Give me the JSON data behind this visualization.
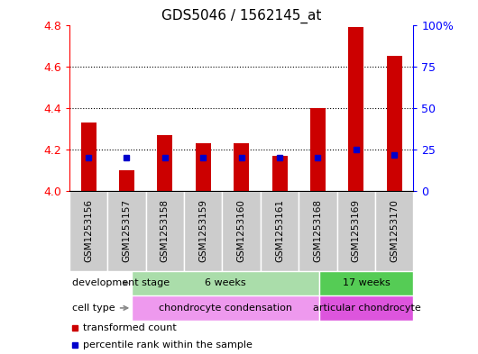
{
  "title": "GDS5046 / 1562145_at",
  "samples": [
    "GSM1253156",
    "GSM1253157",
    "GSM1253158",
    "GSM1253159",
    "GSM1253160",
    "GSM1253161",
    "GSM1253168",
    "GSM1253169",
    "GSM1253170"
  ],
  "transformed_counts": [
    4.33,
    4.1,
    4.27,
    4.23,
    4.23,
    4.17,
    4.4,
    4.79,
    4.65
  ],
  "percentile_ranks": [
    20,
    20,
    20,
    20,
    20,
    20,
    20,
    25,
    22
  ],
  "ylim": [
    4.0,
    4.8
  ],
  "yticks_left": [
    4.0,
    4.2,
    4.4,
    4.6,
    4.8
  ],
  "right_yticks": [
    0,
    25,
    50,
    75,
    100
  ],
  "bar_color": "#cc0000",
  "percentile_color": "#0000cc",
  "sample_bg": "#cccccc",
  "dev_stage_groups": [
    {
      "label": "6 weeks",
      "start": 0,
      "end": 5,
      "color": "#aaddaa"
    },
    {
      "label": "17 weeks",
      "start": 6,
      "end": 8,
      "color": "#55cc55"
    }
  ],
  "cell_type_groups": [
    {
      "label": "chondrocyte condensation",
      "start": 0,
      "end": 5,
      "color": "#ee99ee"
    },
    {
      "label": "articular chondrocyte",
      "start": 6,
      "end": 8,
      "color": "#dd55dd"
    }
  ],
  "legend_items": [
    {
      "label": "transformed count",
      "color": "#cc0000"
    },
    {
      "label": "percentile rank within the sample",
      "color": "#0000cc"
    }
  ],
  "title_fontsize": 11,
  "tick_fontsize": 9
}
